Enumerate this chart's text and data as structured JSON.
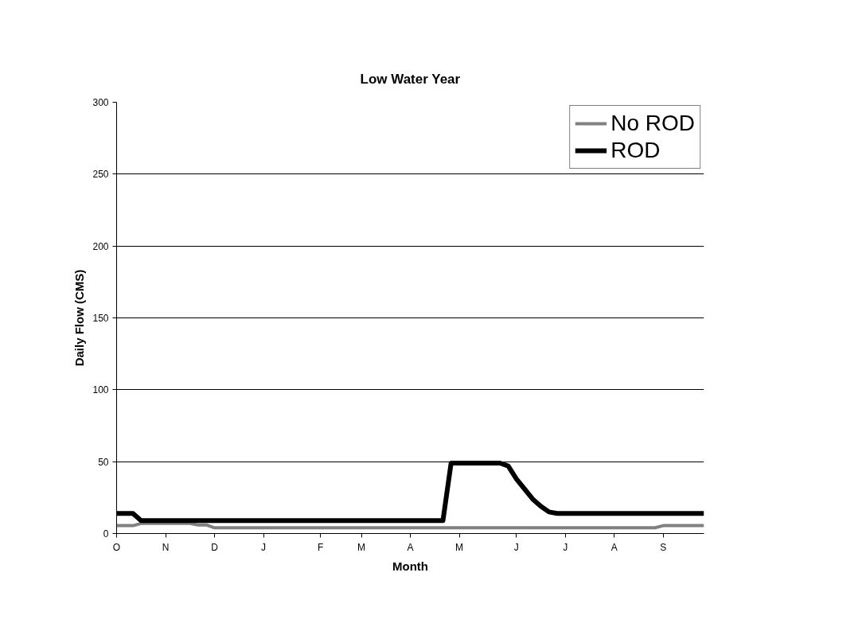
{
  "chart_data": {
    "type": "line",
    "title": "Low Water Year",
    "xlabel": "Month",
    "ylabel": "Daily Flow (CMS)",
    "categories": [
      "O",
      null,
      null,
      null,
      null,
      null,
      "N",
      null,
      null,
      null,
      null,
      null,
      "D",
      null,
      null,
      null,
      null,
      null,
      "J",
      null,
      null,
      null,
      null,
      null,
      null,
      "F",
      null,
      null,
      null,
      null,
      "M",
      null,
      null,
      null,
      null,
      null,
      "A",
      null,
      null,
      null,
      null,
      null,
      "M",
      null,
      null,
      null,
      null,
      null,
      null,
      "J",
      null,
      null,
      null,
      null,
      null,
      "J",
      null,
      null,
      null,
      null,
      null,
      "A",
      null,
      null,
      null,
      null,
      null,
      "S",
      null,
      null,
      null,
      null,
      null
    ],
    "ylim": [
      0,
      300
    ],
    "yticks": [
      0,
      50,
      100,
      150,
      200,
      250,
      300
    ],
    "grid": "y",
    "legend": "top right",
    "series": [
      {
        "name": "No ROD",
        "color": "#808080",
        "values": [
          5.5,
          5.5,
          5.5,
          7,
          7,
          7,
          7,
          7,
          7,
          7,
          6,
          6,
          4,
          4,
          4,
          4,
          4,
          4,
          4,
          4,
          4,
          4,
          4,
          4,
          4,
          4,
          4,
          4,
          4,
          4,
          4,
          4,
          4,
          4,
          4,
          4,
          4,
          4,
          4,
          4,
          4,
          4,
          4,
          4,
          4,
          4,
          4,
          4,
          4,
          4,
          4,
          4,
          4,
          4,
          4,
          4,
          4,
          4,
          4,
          4,
          4,
          4,
          4,
          4,
          4,
          4,
          4,
          5.5,
          5.5,
          5.5,
          5.5,
          5.5,
          5.5
        ]
      },
      {
        "name": "ROD",
        "color": "#000000",
        "values": [
          14,
          14,
          14,
          9,
          9,
          9,
          9,
          9,
          9,
          9,
          9,
          9,
          9,
          9,
          9,
          9,
          9,
          9,
          9,
          9,
          9,
          9,
          9,
          9,
          9,
          9,
          9,
          9,
          9,
          9,
          9,
          9,
          9,
          9,
          9,
          9,
          9,
          9,
          9,
          9,
          9,
          49,
          49,
          49,
          49,
          49,
          49,
          49,
          47,
          38,
          31,
          24,
          19,
          15,
          14,
          14,
          14,
          14,
          14,
          14,
          14,
          14,
          14,
          14,
          14,
          14,
          14,
          14,
          14,
          14,
          14,
          14,
          14
        ]
      }
    ]
  }
}
